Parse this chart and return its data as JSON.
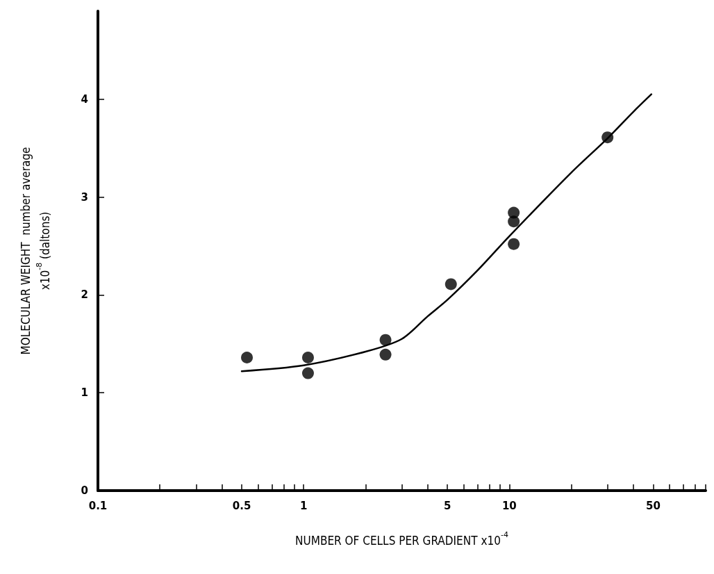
{
  "chart_data": {
    "type": "scatter",
    "xlabel": "NUMBER OF CELLS PER GRADIENT x10$^{-4}$",
    "ylabel": "MOLECULAR WEIGHT  number average\nx10$^{-8}$ (daltons)",
    "log": "x",
    "grid": false,
    "marker": "circle",
    "xlim": [
      0.1,
      90
    ],
    "ylim": [
      0,
      4.9
    ],
    "xticks": [
      0.1,
      {
        "value": 0.2,
        "label": null
      },
      {
        "value": 0.3,
        "label": null
      },
      {
        "value": 0.4,
        "label": null
      },
      0.5,
      {
        "value": 0.6,
        "label": null
      },
      {
        "value": 0.7,
        "label": null
      },
      {
        "value": 0.8,
        "label": null
      },
      {
        "value": 0.9,
        "label": null
      },
      1,
      {
        "value": 2,
        "label": null
      },
      {
        "value": 3,
        "label": null
      },
      {
        "value": 4,
        "label": null
      },
      5,
      {
        "value": 6,
        "label": null
      },
      {
        "value": 7,
        "label": null
      },
      {
        "value": 8,
        "label": null
      },
      {
        "value": 9,
        "label": null
      },
      10,
      {
        "value": 20,
        "label": null
      },
      {
        "value": 30,
        "label": null
      },
      {
        "value": 40,
        "label": null
      },
      50,
      {
        "value": 60,
        "label": null
      },
      {
        "value": 70,
        "label": null
      },
      {
        "value": 80,
        "label": null
      },
      {
        "value": 90,
        "label": null
      }
    ],
    "yticks": [
      0,
      1,
      2,
      3,
      4
    ],
    "series": [
      {
        "color": "#000000",
        "x": [
          0.53,
          1.05,
          1.05,
          2.5,
          2.5,
          5.2,
          10.5,
          10.5,
          10.5,
          30
        ],
        "values": [
          1.36,
          1.36,
          1.2,
          1.54,
          1.39,
          2.11,
          2.84,
          2.75,
          2.52,
          3.61
        ]
      },
      {
        "type": "line",
        "color": "#000000",
        "marker": "none",
        "line_style": "solid",
        "x": [
          0.5,
          1,
          2,
          3,
          4,
          5,
          7,
          10,
          20,
          30,
          40,
          49
        ],
        "values": [
          1.22,
          1.28,
          1.42,
          1.55,
          1.78,
          1.95,
          2.25,
          2.6,
          3.25,
          3.6,
          3.87,
          4.05
        ]
      }
    ]
  }
}
